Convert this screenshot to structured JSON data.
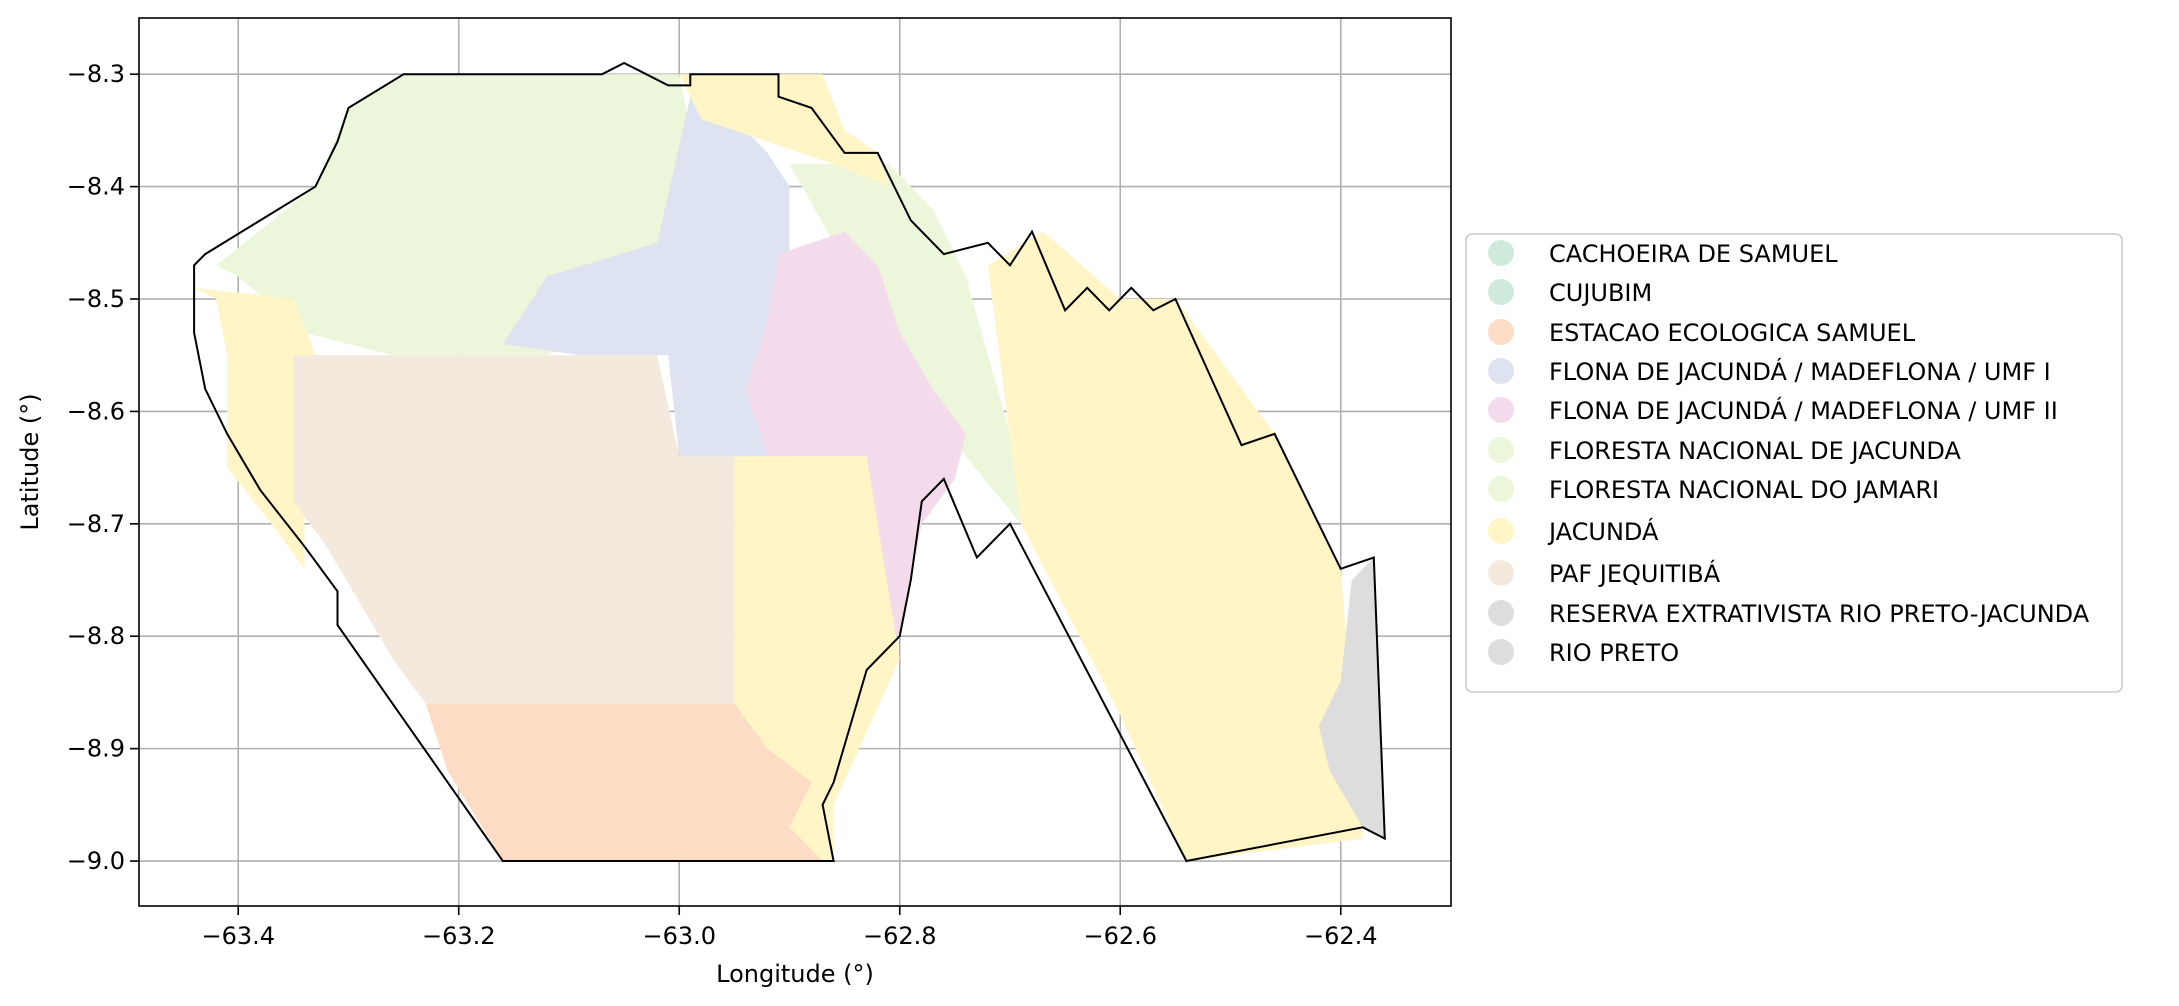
{
  "figure": {
    "xlabel": "Longitude (°)",
    "ylabel": "Latitude (°)",
    "xlim": [
      -63.49,
      -62.3
    ],
    "ylim": [
      -9.04,
      -8.25
    ],
    "xticks": [
      -63.4,
      -63.2,
      -63.0,
      -62.8,
      -62.6,
      -62.4
    ],
    "xtick_labels": [
      "−63.4",
      "−63.2",
      "−63.0",
      "−62.8",
      "−62.6",
      "−62.4"
    ],
    "yticks": [
      -8.3,
      -8.4,
      -8.5,
      -8.6,
      -8.7,
      -8.8,
      -8.9,
      -9.0
    ],
    "ytick_labels": [
      "−8.3",
      "−8.4",
      "−8.5",
      "−8.6",
      "−8.7",
      "−8.8",
      "−8.9",
      "−9.0"
    ],
    "grid": true,
    "legend_position": "right, outside plot"
  },
  "legend": {
    "entries": [
      {
        "label": "CACHOEIRA DE SAMUEL",
        "color": "#cfeadb"
      },
      {
        "label": "CUJUBIM",
        "color": "#cfeadb"
      },
      {
        "label": "ESTACAO ECOLOGICA SAMUEL",
        "color": "#fcdcc4"
      },
      {
        "label": "FLONA DE JACUNDÁ / MADEFLONA / UMF I",
        "color": "#dde3f0"
      },
      {
        "label": "FLONA DE JACUNDÁ / MADEFLONA / UMF II",
        "color": "#f3dbeb"
      },
      {
        "label": "FLORESTA NACIONAL DE JACUNDA",
        "color": "#ecf6da"
      },
      {
        "label": "FLORESTA NACIONAL DO JAMARI",
        "color": "#ecf6da"
      },
      {
        "label": "JACUNDÁ",
        "color": "#fff5c6"
      },
      {
        "label": "PAF JEQUITIBÁ",
        "color": "#f3eadd"
      },
      {
        "label": "RESERVA EXTRATIVISTA RIO PRETO-JACUNDA",
        "color": "#dddddd"
      },
      {
        "label": "RIO PRETO",
        "color": "#dddddd"
      }
    ]
  },
  "map_data": {
    "boundary_color": "#000000",
    "regions": [
      {
        "name": "FLORESTA NACIONAL DO JAMARI",
        "color": "#ecf6da",
        "coords": [
          [
            -63.42,
            -8.47
          ],
          [
            -63.33,
            -8.4
          ],
          [
            -63.3,
            -8.33
          ],
          [
            -63.25,
            -8.3
          ],
          [
            -63.0,
            -8.3
          ],
          [
            -62.99,
            -8.35
          ],
          [
            -62.99,
            -8.48
          ],
          [
            -63.05,
            -8.52
          ],
          [
            -63.12,
            -8.55
          ],
          [
            -63.26,
            -8.55
          ],
          [
            -63.34,
            -8.53
          ],
          [
            -63.4,
            -8.48
          ]
        ]
      },
      {
        "name": "FLONA DE JACUNDÁ / MADEFLONA / UMF I",
        "color": "#dde3f0",
        "coords": [
          [
            -62.99,
            -8.32
          ],
          [
            -62.96,
            -8.33
          ],
          [
            -62.92,
            -8.37
          ],
          [
            -62.9,
            -8.4
          ],
          [
            -62.9,
            -8.48
          ],
          [
            -62.92,
            -8.52
          ],
          [
            -62.89,
            -8.58
          ],
          [
            -62.9,
            -8.64
          ],
          [
            -63.0,
            -8.64
          ],
          [
            -63.01,
            -8.55
          ],
          [
            -63.09,
            -8.55
          ],
          [
            -63.16,
            -8.54
          ],
          [
            -63.12,
            -8.48
          ],
          [
            -63.02,
            -8.45
          ]
        ]
      },
      {
        "name": "FLORESTA NACIONAL DE JACUNDA",
        "color": "#ecf6da",
        "coords": [
          [
            -62.9,
            -8.38
          ],
          [
            -62.81,
            -8.38
          ],
          [
            -62.77,
            -8.42
          ],
          [
            -62.74,
            -8.48
          ],
          [
            -62.72,
            -8.55
          ],
          [
            -62.7,
            -8.62
          ],
          [
            -62.69,
            -8.7
          ],
          [
            -62.74,
            -8.64
          ],
          [
            -62.78,
            -8.58
          ],
          [
            -62.83,
            -8.52
          ],
          [
            -62.86,
            -8.45
          ]
        ]
      },
      {
        "name": "FLONA DE JACUNDÁ / MADEFLONA / UMF II",
        "color": "#f3dbeb",
        "coords": [
          [
            -62.91,
            -8.46
          ],
          [
            -62.85,
            -8.44
          ],
          [
            -62.82,
            -8.47
          ],
          [
            -62.8,
            -8.53
          ],
          [
            -62.77,
            -8.58
          ],
          [
            -62.74,
            -8.62
          ],
          [
            -62.75,
            -8.66
          ],
          [
            -62.78,
            -8.7
          ],
          [
            -62.79,
            -8.75
          ],
          [
            -62.8,
            -8.8
          ],
          [
            -62.82,
            -8.8
          ],
          [
            -62.83,
            -8.64
          ],
          [
            -62.92,
            -8.64
          ],
          [
            -62.94,
            -8.58
          ],
          [
            -62.92,
            -8.52
          ]
        ]
      },
      {
        "name": "JACUNDÁ",
        "color": "#fff5c6",
        "coords": [
          [
            -62.95,
            -8.64
          ],
          [
            -62.83,
            -8.64
          ],
          [
            -62.8,
            -8.82
          ],
          [
            -62.86,
            -8.95
          ],
          [
            -62.86,
            -9.0
          ],
          [
            -62.95,
            -8.99
          ],
          [
            -62.95,
            -8.89
          ]
        ]
      },
      {
        "name": "JACUNDÁ",
        "color": "#fff5c6",
        "coords": [
          [
            -63.0,
            -8.3
          ],
          [
            -62.87,
            -8.3
          ],
          [
            -62.85,
            -8.35
          ],
          [
            -62.82,
            -8.37
          ],
          [
            -62.81,
            -8.4
          ],
          [
            -62.86,
            -8.38
          ],
          [
            -62.92,
            -8.36
          ],
          [
            -62.98,
            -8.34
          ]
        ]
      },
      {
        "name": "JACUNDÁ",
        "color": "#fff5c6",
        "coords": [
          [
            -63.44,
            -8.49
          ],
          [
            -63.42,
            -8.5
          ],
          [
            -63.41,
            -8.55
          ],
          [
            -63.41,
            -8.65
          ],
          [
            -63.37,
            -8.7
          ],
          [
            -63.34,
            -8.74
          ],
          [
            -63.34,
            -8.62
          ],
          [
            -63.33,
            -8.55
          ],
          [
            -63.35,
            -8.5
          ]
        ]
      },
      {
        "name": "JACUNDÁ",
        "color": "#fff5c6",
        "coords": [
          [
            -62.72,
            -8.47
          ],
          [
            -62.67,
            -8.44
          ],
          [
            -62.6,
            -8.5
          ],
          [
            -62.55,
            -8.5
          ],
          [
            -62.46,
            -8.62
          ],
          [
            -62.4,
            -8.74
          ],
          [
            -62.38,
            -8.98
          ],
          [
            -62.54,
            -9.0
          ],
          [
            -62.6,
            -8.87
          ],
          [
            -62.69,
            -8.7
          ]
        ]
      },
      {
        "name": "PAF JEQUITIBÁ",
        "color": "#f3eadd",
        "coords": [
          [
            -63.35,
            -8.55
          ],
          [
            -63.02,
            -8.55
          ],
          [
            -63.0,
            -8.64
          ],
          [
            -62.95,
            -8.64
          ],
          [
            -62.95,
            -8.86
          ],
          [
            -63.23,
            -8.86
          ],
          [
            -63.26,
            -8.82
          ],
          [
            -63.32,
            -8.72
          ],
          [
            -63.35,
            -8.68
          ]
        ]
      },
      {
        "name": "ESTACAO ECOLOGICA SAMUEL",
        "color": "#fcdcc4",
        "coords": [
          [
            -63.23,
            -8.86
          ],
          [
            -62.95,
            -8.86
          ],
          [
            -62.92,
            -8.9
          ],
          [
            -62.88,
            -8.93
          ],
          [
            -62.9,
            -8.97
          ],
          [
            -62.87,
            -9.0
          ],
          [
            -63.16,
            -9.0
          ],
          [
            -63.21,
            -8.92
          ]
        ]
      },
      {
        "name": "RESERVA EXTRATIVISTA RIO PRETO-JACUNDA",
        "color": "#dddddd",
        "coords": [
          [
            -62.39,
            -8.75
          ],
          [
            -62.37,
            -8.73
          ],
          [
            -62.36,
            -8.98
          ],
          [
            -62.38,
            -8.97
          ],
          [
            -62.41,
            -8.92
          ],
          [
            -62.42,
            -8.88
          ],
          [
            -62.4,
            -8.84
          ]
        ]
      }
    ],
    "boundary": [
      [
        -63.43,
        -8.46
      ],
      [
        -63.33,
        -8.4
      ],
      [
        -63.31,
        -8.36
      ],
      [
        -63.3,
        -8.33
      ],
      [
        -63.25,
        -8.3
      ],
      [
        -63.07,
        -8.3
      ],
      [
        -63.05,
        -8.29
      ],
      [
        -63.03,
        -8.3
      ],
      [
        -63.01,
        -8.31
      ],
      [
        -62.99,
        -8.31
      ],
      [
        -62.99,
        -8.3
      ],
      [
        -62.91,
        -8.3
      ],
      [
        -62.91,
        -8.32
      ],
      [
        -62.88,
        -8.33
      ],
      [
        -62.85,
        -8.37
      ],
      [
        -62.82,
        -8.37
      ],
      [
        -62.79,
        -8.43
      ],
      [
        -62.76,
        -8.46
      ],
      [
        -62.72,
        -8.45
      ],
      [
        -62.7,
        -8.47
      ],
      [
        -62.68,
        -8.44
      ],
      [
        -62.65,
        -8.51
      ],
      [
        -62.63,
        -8.49
      ],
      [
        -62.61,
        -8.51
      ],
      [
        -62.59,
        -8.49
      ],
      [
        -62.57,
        -8.51
      ],
      [
        -62.55,
        -8.5
      ],
      [
        -62.49,
        -8.63
      ],
      [
        -62.46,
        -8.62
      ],
      [
        -62.4,
        -8.74
      ],
      [
        -62.37,
        -8.73
      ],
      [
        -62.36,
        -8.98
      ],
      [
        -62.38,
        -8.97
      ],
      [
        -62.54,
        -9.0
      ],
      [
        -62.7,
        -8.7
      ],
      [
        -62.73,
        -8.73
      ],
      [
        -62.76,
        -8.66
      ],
      [
        -62.78,
        -8.68
      ],
      [
        -62.79,
        -8.75
      ],
      [
        -62.8,
        -8.8
      ],
      [
        -62.83,
        -8.83
      ],
      [
        -62.86,
        -8.93
      ],
      [
        -62.87,
        -8.95
      ],
      [
        -62.86,
        -9.0
      ],
      [
        -63.16,
        -9.0
      ],
      [
        -63.31,
        -8.79
      ],
      [
        -63.31,
        -8.76
      ],
      [
        -63.34,
        -8.72
      ],
      [
        -63.38,
        -8.67
      ],
      [
        -63.41,
        -8.62
      ],
      [
        -63.43,
        -8.58
      ],
      [
        -63.44,
        -8.53
      ],
      [
        -63.44,
        -8.47
      ]
    ]
  }
}
